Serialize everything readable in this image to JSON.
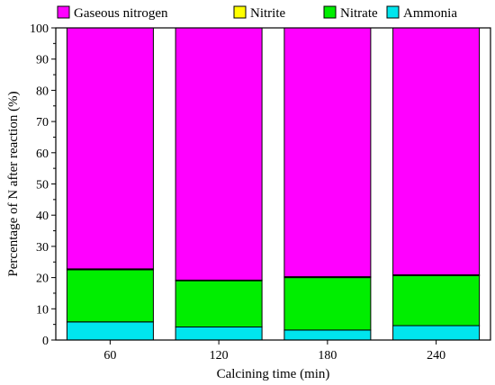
{
  "chart_data": {
    "type": "bar",
    "stacked": true,
    "categories": [
      "60",
      "120",
      "180",
      "240"
    ],
    "series": [
      {
        "name": "Ammonia",
        "color": "#00e5ee",
        "values": [
          5.8,
          4.2,
          3.2,
          4.6
        ]
      },
      {
        "name": "Nitrate",
        "color": "#00ee00",
        "values": [
          16.7,
          14.8,
          16.8,
          16.0
        ]
      },
      {
        "name": "Nitrite",
        "color": "#ffff00",
        "values": [
          0.3,
          0.2,
          0.3,
          0.3
        ]
      },
      {
        "name": "Gaseous nitrogen",
        "color": "#ff00ff",
        "values": [
          77.2,
          80.8,
          79.7,
          79.1
        ]
      }
    ],
    "legend_order": [
      "Gaseous nitrogen",
      "Nitrite",
      "Nitrate",
      "Ammonia"
    ],
    "xlabel": "Calcining time (min)",
    "ylabel": "Percentage of N after reaction (%)",
    "ylim": [
      0,
      100
    ],
    "yticks": [
      0,
      10,
      20,
      30,
      40,
      50,
      60,
      70,
      80,
      90,
      100
    ],
    "legend_position": "top",
    "grid": false
  }
}
